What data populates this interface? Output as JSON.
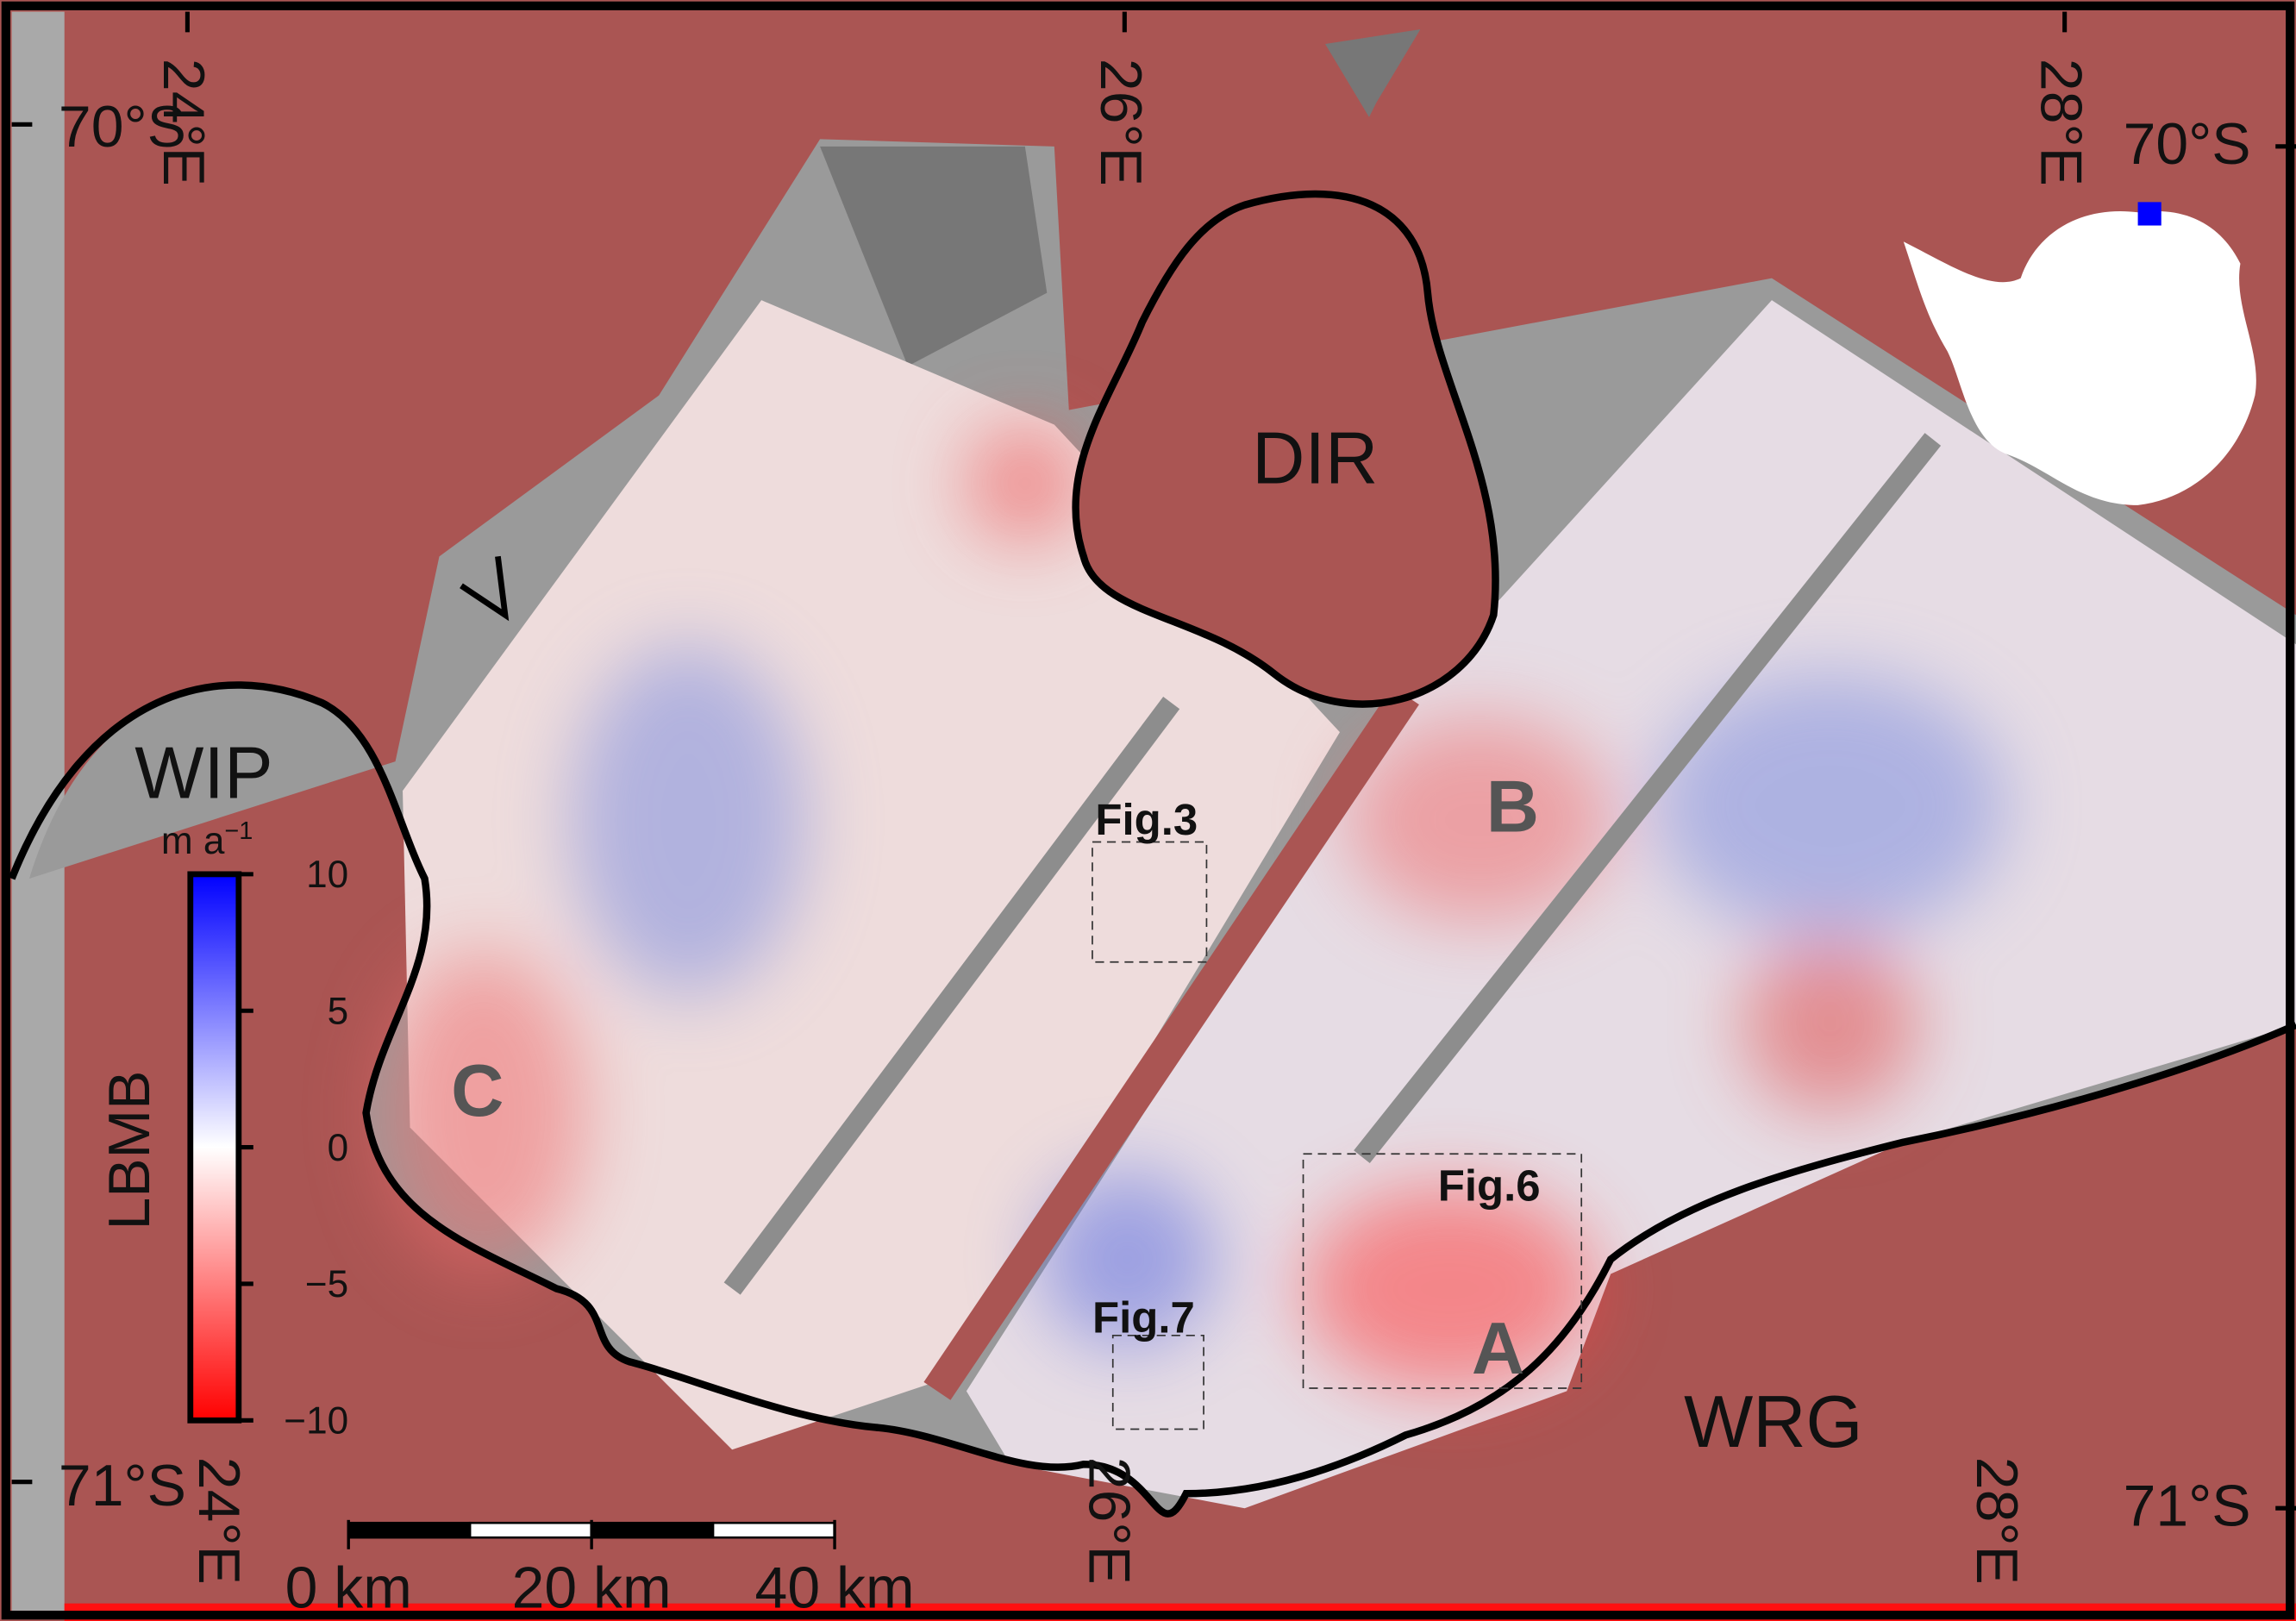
{
  "graticule": {
    "lat_labels": [
      "70°S",
      "70°S",
      "71°S",
      "71°S"
    ],
    "lon_labels": [
      "24°E",
      "26°E",
      "28°E",
      "24°E",
      "26°E",
      "28°E"
    ]
  },
  "labels": {
    "ice_rise": "DIR",
    "wip": "WIP",
    "wrg": "WRG",
    "regions": [
      "A",
      "B",
      "C"
    ],
    "figures": [
      "Fig.3",
      "Fig.6",
      "Fig.7"
    ]
  },
  "colorbar": {
    "label": "LBMB",
    "unit": "m a",
    "unit_exp": "−1",
    "lim": [
      -10,
      10
    ],
    "ticks": [
      10,
      5,
      0,
      {
        "value": -5,
        "label": "−5"
      },
      {
        "value": -10,
        "label": "−10"
      }
    ]
  },
  "scale_bar": {
    "lim": [
      0,
      40
    ],
    "ticks": [
      {
        "value": 0,
        "label": "0 km"
      },
      {
        "value": 20,
        "label": "20 km"
      },
      {
        "value": 40,
        "label": "40 km"
      }
    ]
  }
}
